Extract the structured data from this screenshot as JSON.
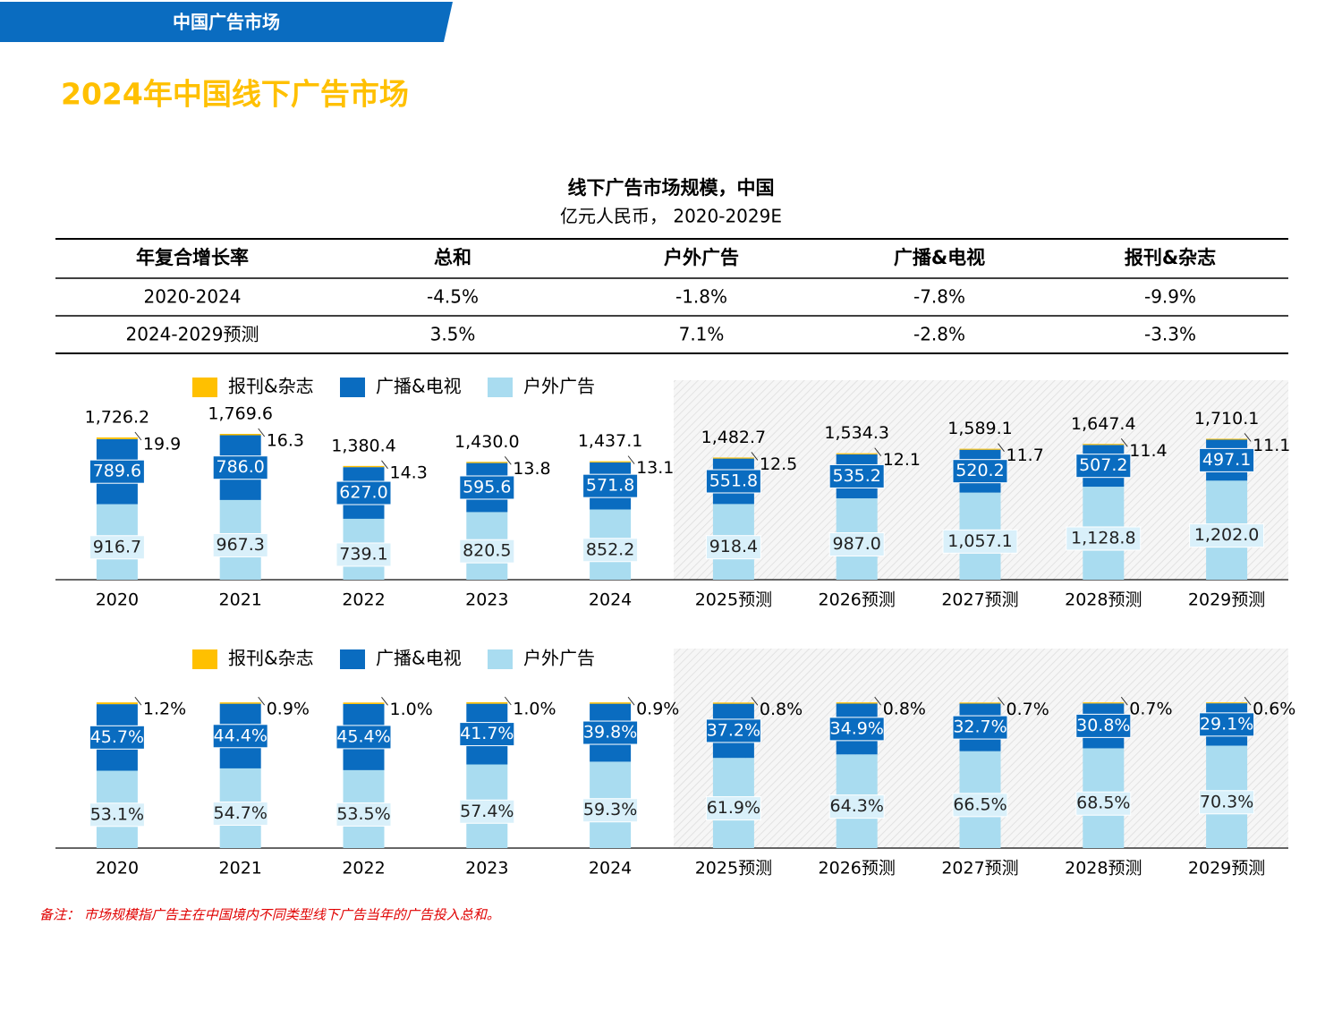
{
  "header": {
    "section": "中国广告市场",
    "title": "2024年中国线下广告市场"
  },
  "figure": {
    "title": "线下广告市场规模，中国",
    "subtitle": "亿元人民币， 2020-2029E"
  },
  "table": {
    "header": [
      "年复合增长率",
      "总和",
      "户外广告",
      "广播&电视",
      "报刊&杂志"
    ],
    "rows": [
      [
        "2020-2024",
        "-4.5%",
        "-1.8%",
        "-7.8%",
        "-9.9%"
      ],
      [
        "2024-2029预测",
        "3.5%",
        "7.1%",
        "-2.8%",
        "-3.3%"
      ]
    ]
  },
  "chart_data": [
    {
      "type": "bar",
      "stacked": true,
      "categories": [
        "2020",
        "2021",
        "2022",
        "2023",
        "2024",
        "2025预测",
        "2026预测",
        "2027预测",
        "2028预测",
        "2029预测"
      ],
      "series": [
        {
          "name": "报刊&杂志",
          "color": "#ffc000",
          "values": [
            19.9,
            16.3,
            14.3,
            13.8,
            13.1,
            12.5,
            12.1,
            11.7,
            11.4,
            11.1
          ]
        },
        {
          "name": "广播&电视",
          "color": "#0a6cc0",
          "values": [
            789.6,
            786.0,
            627.0,
            595.6,
            571.8,
            551.8,
            535.2,
            520.2,
            507.2,
            497.1
          ],
          "value_labels": [
            "789.6",
            "786.0",
            "627.0",
            "595.6",
            "571.8",
            "551.8",
            "535.2",
            "520.2",
            "507.2",
            "497.1"
          ]
        },
        {
          "name": "户外广告",
          "color": "#a9dcf0",
          "values": [
            916.7,
            967.3,
            739.1,
            820.5,
            852.2,
            918.4,
            987.0,
            1057.1,
            1128.8,
            1202.0
          ],
          "value_labels": [
            "916.7",
            "967.3",
            "739.1",
            "820.5",
            "852.2",
            "918.4",
            "987.0",
            "1,057.1",
            "1,128.8",
            "1,202.0"
          ]
        }
      ],
      "totals": [
        1726.2,
        1769.6,
        1380.4,
        1430.0,
        1437.1,
        1482.7,
        1534.3,
        1589.1,
        1647.4,
        1710.1
      ],
      "total_labels": [
        "1,726.2",
        "1,769.6",
        "1,380.4",
        "1,430.0",
        "1,437.1",
        "1,482.7",
        "1,534.3",
        "1,589.1",
        "1,647.4",
        "1,710.1"
      ]
    },
    {
      "type": "bar",
      "stacked": true,
      "categories": [
        "2020",
        "2021",
        "2022",
        "2023",
        "2024",
        "2025预测",
        "2026预测",
        "2027预测",
        "2028预测",
        "2029预测"
      ],
      "series": [
        {
          "name": "报刊&杂志",
          "color": "#ffc000",
          "values": [
            1.2,
            0.9,
            1.0,
            1.0,
            0.9,
            0.8,
            0.8,
            0.7,
            0.7,
            0.6
          ],
          "value_labels": [
            "1.2%",
            "0.9%",
            "1.0%",
            "1.0%",
            "0.9%",
            "0.8%",
            "0.8%",
            "0.7%",
            "0.7%",
            "0.6%"
          ]
        },
        {
          "name": "广播&电视",
          "color": "#0a6cc0",
          "values": [
            45.7,
            44.4,
            45.4,
            41.7,
            39.8,
            37.2,
            34.9,
            32.7,
            30.8,
            29.1
          ],
          "value_labels": [
            "45.7%",
            "44.4%",
            "45.4%",
            "41.7%",
            "39.8%",
            "37.2%",
            "34.9%",
            "32.7%",
            "30.8%",
            "29.1%"
          ]
        },
        {
          "name": "户外广告",
          "color": "#a9dcf0",
          "values": [
            53.1,
            54.7,
            53.5,
            57.4,
            59.3,
            61.9,
            64.3,
            66.5,
            68.5,
            70.3
          ],
          "value_labels": [
            "53.1%",
            "54.7%",
            "53.5%",
            "57.4%",
            "59.3%",
            "61.9%",
            "64.3%",
            "66.5%",
            "68.5%",
            "70.3%"
          ]
        }
      ]
    }
  ],
  "note": "备注： 市场规模指广告主在中国境内不同类型线下广告当年的广告投入总和。"
}
